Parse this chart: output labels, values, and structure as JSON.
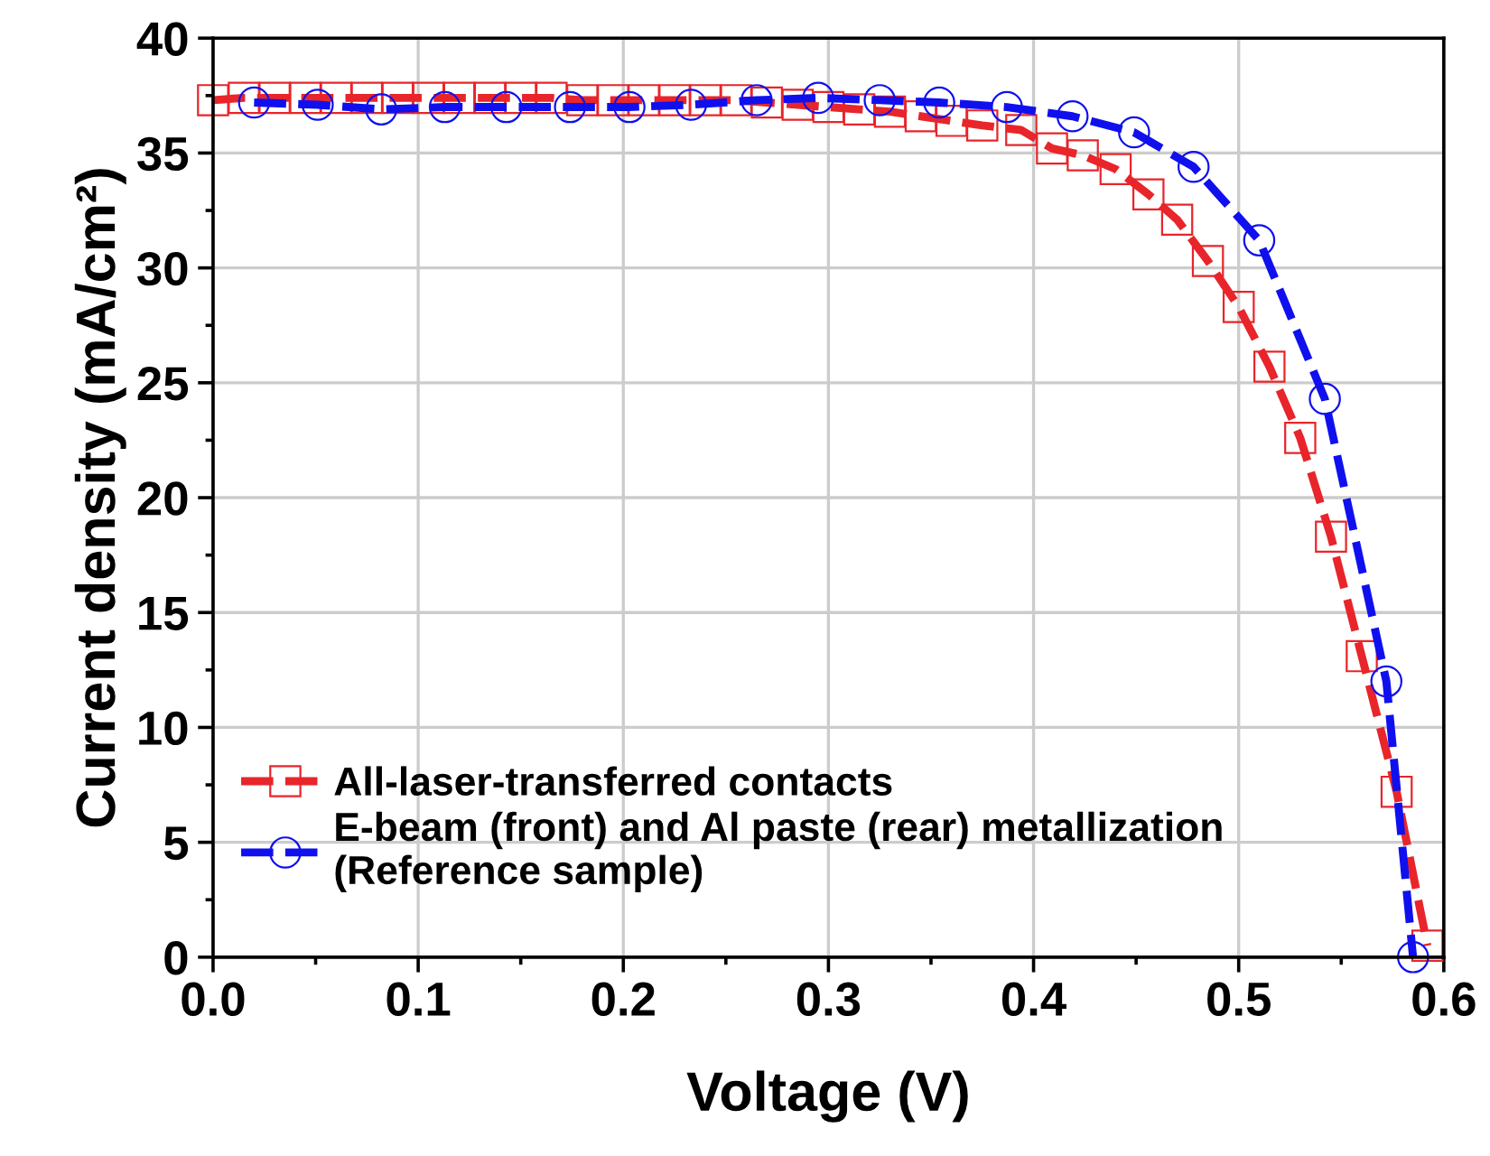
{
  "chart_data": {
    "type": "line",
    "xlabel": "Voltage (V)",
    "ylabel": "Current density (mA/cm²)",
    "xlim": [
      0,
      0.6
    ],
    "ylim": [
      0,
      40
    ],
    "xticks": [
      {
        "value": 0.0,
        "label": "0.0"
      },
      {
        "value": 0.05,
        "label": null
      },
      {
        "value": 0.1,
        "label": "0.1"
      },
      {
        "value": 0.15,
        "label": null
      },
      {
        "value": 0.2,
        "label": "0.2"
      },
      {
        "value": 0.25,
        "label": null
      },
      {
        "value": 0.3,
        "label": "0.3"
      },
      {
        "value": 0.35,
        "label": null
      },
      {
        "value": 0.4,
        "label": "0.4"
      },
      {
        "value": 0.45,
        "label": null
      },
      {
        "value": 0.5,
        "label": "0.5"
      },
      {
        "value": 0.55,
        "label": null
      },
      {
        "value": 0.6,
        "label": "0.6"
      }
    ],
    "yticks": [
      0,
      {
        "value": 2.5,
        "label": null
      },
      5,
      {
        "value": 7.5,
        "label": null
      },
      10,
      {
        "value": 12.5,
        "label": null
      },
      15,
      {
        "value": 17.5,
        "label": null
      },
      20,
      {
        "value": 22.5,
        "label": null
      },
      25,
      {
        "value": 27.5,
        "label": null
      },
      30,
      {
        "value": 32.5,
        "label": null
      },
      35,
      {
        "value": 37.5,
        "label": null
      },
      40
    ],
    "grid": true,
    "legend": "bottom left",
    "line_style": "dashed",
    "series": [
      {
        "name": "All-laser-transferred contacts",
        "color": "#e8252a",
        "marker": "square",
        "x": [
          0.0,
          0.015,
          0.03,
          0.045,
          0.06,
          0.075,
          0.09,
          0.105,
          0.12,
          0.135,
          0.15,
          0.165,
          0.18,
          0.195,
          0.21,
          0.225,
          0.24,
          0.255,
          0.27,
          0.285,
          0.3,
          0.315,
          0.33,
          0.345,
          0.36,
          0.375,
          0.394,
          0.409,
          0.424,
          0.44,
          0.456,
          0.47,
          0.485,
          0.5,
          0.515,
          0.53,
          0.545,
          0.56,
          0.577,
          0.592
        ],
        "values": [
          37.3,
          37.4,
          37.4,
          37.4,
          37.4,
          37.4,
          37.4,
          37.4,
          37.4,
          37.4,
          37.4,
          37.4,
          37.3,
          37.3,
          37.3,
          37.3,
          37.3,
          37.3,
          37.2,
          37.1,
          37.0,
          36.9,
          36.8,
          36.6,
          36.4,
          36.2,
          36.0,
          35.2,
          34.9,
          34.3,
          33.2,
          32.1,
          30.3,
          28.3,
          25.7,
          22.6,
          18.3,
          13.1,
          7.2,
          0.5
        ]
      },
      {
        "name": "E-beam (front) and Al paste (rear) metallization\n(Reference sample)",
        "color": "#1010ee",
        "marker": "circle",
        "x": [
          0.02,
          0.051,
          0.082,
          0.113,
          0.143,
          0.174,
          0.203,
          0.233,
          0.265,
          0.295,
          0.325,
          0.354,
          0.387,
          0.419,
          0.449,
          0.478,
          0.51,
          0.542,
          0.572,
          0.585
        ],
        "values": [
          37.2,
          37.1,
          36.9,
          37.0,
          37.0,
          37.0,
          37.0,
          37.1,
          37.3,
          37.4,
          37.3,
          37.2,
          37.0,
          36.6,
          35.9,
          34.4,
          31.2,
          24.3,
          12.0,
          0.0
        ]
      }
    ]
  }
}
